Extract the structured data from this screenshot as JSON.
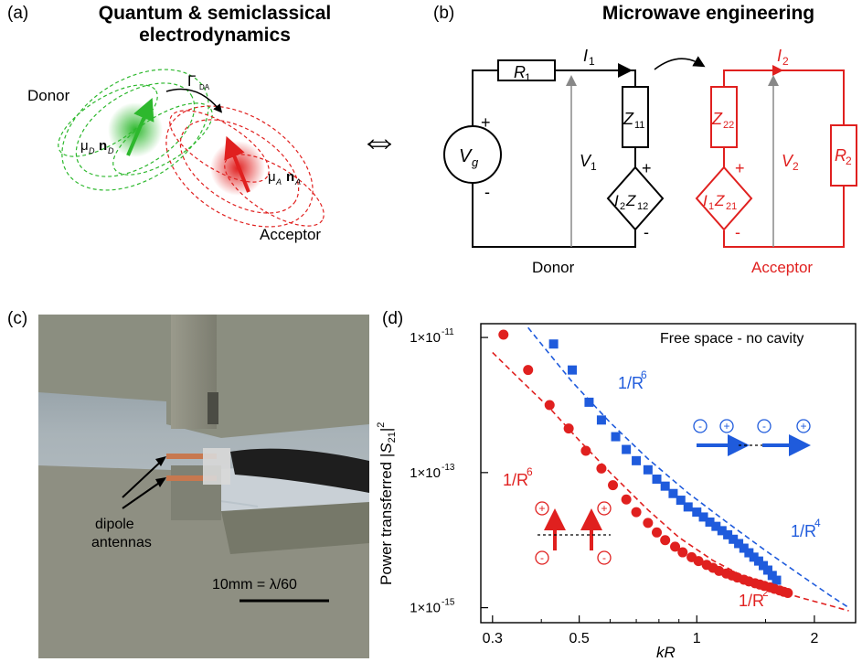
{
  "panel_a": {
    "label": "(a)",
    "heading": [
      "Quantum & semiclassical",
      "electrodynamics"
    ],
    "donor_label": "Donor",
    "acceptor_label": "Acceptor",
    "transfer_symbol": "Γ",
    "transfer_subscript": "DA",
    "donor_dipole_mu": "μ",
    "donor_dipole_mu_sub": "D",
    "donor_dipole_n": "n",
    "donor_dipole_n_sub": "D",
    "acceptor_dipole_mu": "μ",
    "acceptor_dipole_mu_sub": "A",
    "acceptor_dipole_n": "n",
    "acceptor_dipole_n_sub": "A",
    "colors": {
      "donor": "#2db82d",
      "acceptor": "#e0201f"
    }
  },
  "equivalence_symbol": "⇔",
  "panel_b": {
    "label": "(b)",
    "heading": "Microwave engineering",
    "donor_caption": "Donor",
    "acceptor_caption": "Acceptor",
    "R1": "R",
    "R1_sub": "1",
    "I1": "I",
    "I1_sub": "1",
    "Z11": "Z",
    "Z11_sub": "11",
    "Vg": "V",
    "Vg_sub": "g",
    "V1": "V",
    "V1_sub": "1",
    "I2Z12": [
      "I",
      "2",
      "Z",
      "12"
    ],
    "I2": "I",
    "I2_sub": "2",
    "Z22": "Z",
    "Z22_sub": "22",
    "V2": "V",
    "V2_sub": "2",
    "R2": "R",
    "R2_sub": "2",
    "I1Z21": [
      "I",
      "1",
      "Z",
      "21"
    ],
    "plus": "+",
    "minus": "-",
    "colors": {
      "donor": "#000000",
      "acceptor": "#e0201f"
    }
  },
  "panel_c": {
    "label": "(c)",
    "annotation": [
      "dipole",
      "antennas"
    ],
    "scale_text": "10mm = λ/60"
  },
  "chart_data": {
    "type": "scatter",
    "label": "(d)",
    "title": "Free space - no cavity",
    "xlabel": "kR",
    "ylabel": "Power transferred |S21|²",
    "ylabel_parts": {
      "main": "Power transferred |",
      "sub": "21",
      "sup": "2",
      "S": "S"
    },
    "x_scale": "log",
    "y_scale": "log",
    "xlim": [
      0.28,
      2.55
    ],
    "ylim": [
      6e-16,
      1.6e-11
    ],
    "x_ticks": [
      {
        "value": 0.3,
        "label": "0.3"
      },
      {
        "value": 0.5,
        "label": "0.5"
      },
      {
        "value": 1,
        "label": "1"
      },
      {
        "value": 2,
        "label": "2"
      }
    ],
    "x_minor": [
      0.4,
      0.6,
      0.7,
      0.8,
      0.9,
      1.5
    ],
    "y_ticks": [
      {
        "value": 1e-11,
        "base": "1×10",
        "exp": "-11"
      },
      {
        "value": 1e-13,
        "base": "1×10",
        "exp": "-13"
      },
      {
        "value": 1e-15,
        "base": "1×10",
        "exp": "-15"
      }
    ],
    "series": [
      {
        "marker": "square",
        "color": "#1f5bdc",
        "x": [
          0.43,
          0.48,
          0.53,
          0.57,
          0.62,
          0.66,
          0.7,
          0.75,
          0.79,
          0.83,
          0.87,
          0.91,
          0.95,
          1.0,
          1.04,
          1.08,
          1.12,
          1.16,
          1.2,
          1.24,
          1.28,
          1.32,
          1.36,
          1.4,
          1.44,
          1.48,
          1.52,
          1.56,
          1.6
        ],
        "y": [
          8e-12,
          3.3e-12,
          1.1e-12,
          6e-13,
          3.4e-13,
          2.2e-13,
          1.5e-13,
          1.1e-13,
          8e-14,
          6.3e-14,
          4.9e-14,
          3.9e-14,
          3.1e-14,
          2.6e-14,
          2.2e-14,
          1.85e-14,
          1.6e-14,
          1.38e-14,
          1.2e-14,
          1.03e-14,
          8.9e-15,
          7.6e-15,
          6.5e-15,
          5.6e-15,
          4.9e-15,
          4.2e-15,
          3.6e-15,
          3e-15,
          2.55e-15
        ]
      },
      {
        "marker": "circle",
        "color": "#e0201f",
        "x": [
          0.32,
          0.37,
          0.42,
          0.47,
          0.52,
          0.57,
          0.61,
          0.66,
          0.7,
          0.75,
          0.79,
          0.83,
          0.88,
          0.92,
          0.97,
          1.01,
          1.06,
          1.1,
          1.14,
          1.19,
          1.23,
          1.27,
          1.32,
          1.36,
          1.41,
          1.45,
          1.49,
          1.54,
          1.58,
          1.63,
          1.67,
          1.71
        ],
        "y": [
          1.1e-11,
          3.3e-12,
          1e-12,
          4.5e-13,
          2.1e-13,
          1.15e-13,
          6.5e-14,
          4e-14,
          2.6e-14,
          1.8e-14,
          1.3e-14,
          1e-14,
          8e-15,
          6.6e-15,
          5.6e-15,
          4.9e-15,
          4.3e-15,
          3.9e-15,
          3.5e-15,
          3.2e-15,
          3e-15,
          2.8e-15,
          2.6e-15,
          2.45e-15,
          2.3e-15,
          2.2e-15,
          2.1e-15,
          2e-15,
          1.9e-15,
          1.8e-15,
          1.72e-15,
          1.65e-15
        ]
      }
    ],
    "fits": [
      {
        "color": "#1f5bdc",
        "x": [
          0.37,
          0.48,
          0.6,
          0.75,
          0.95,
          1.2,
          1.5,
          1.85,
          2.2,
          2.45
        ],
        "y": [
          1.4e-11,
          2.2e-12,
          5.5e-13,
          1.6e-13,
          5e-14,
          1.8e-14,
          7e-15,
          3e-15,
          1.5e-15,
          1e-15
        ]
      },
      {
        "color": "#e0201f",
        "x": [
          0.3,
          0.35,
          0.42,
          0.5,
          0.6,
          0.75,
          0.9,
          1.1,
          1.35,
          1.6,
          1.85,
          2.1,
          2.45
        ],
        "y": [
          6e-12,
          2.5e-12,
          9e-13,
          3e-13,
          1e-13,
          2.8e-14,
          1.1e-14,
          5e-15,
          2.7e-15,
          1.8e-15,
          1.4e-15,
          1.15e-15,
          9e-16
        ]
      }
    ],
    "annotations": [
      {
        "text": "1/R",
        "sup": "6",
        "color": "#1f5bdc"
      },
      {
        "text": "1/R",
        "sup": "6",
        "color": "#e0201f"
      },
      {
        "text": "1/R",
        "sup": "4",
        "color": "#1f5bdc"
      },
      {
        "text": "1/R",
        "sup": "2",
        "color": "#e0201f"
      }
    ],
    "charge_plus": "+",
    "charge_minus": "-"
  }
}
